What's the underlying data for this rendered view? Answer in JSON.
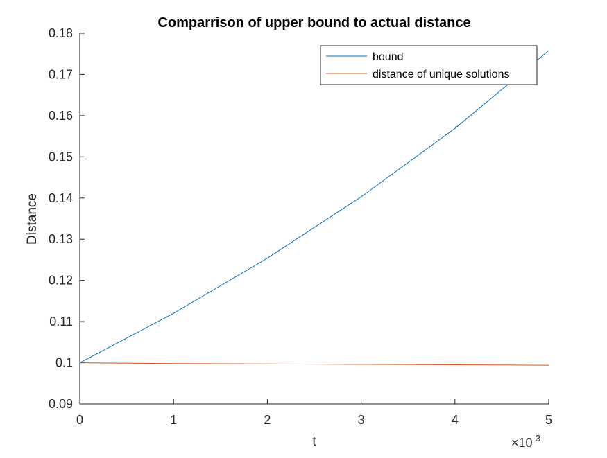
{
  "chart_data": {
    "type": "line",
    "title": "Comparrison of upper bound to actual distance",
    "xlabel": "t",
    "ylabel": "Distance",
    "x_exponent_label": "×10",
    "x_exponent_power": "-3",
    "xlim": [
      0,
      0.005
    ],
    "ylim": [
      0.09,
      0.18
    ],
    "x_ticks": [
      0,
      0.001,
      0.002,
      0.003,
      0.004,
      0.005
    ],
    "x_tick_labels": [
      "0",
      "1",
      "2",
      "3",
      "4",
      "5"
    ],
    "y_ticks": [
      0.09,
      0.1,
      0.11,
      0.12,
      0.13,
      0.14,
      0.15,
      0.16,
      0.17,
      0.18
    ],
    "y_tick_labels": [
      "0.09",
      "0.1",
      "0.11",
      "0.12",
      "0.13",
      "0.14",
      "0.15",
      "0.16",
      "0.17",
      "0.18"
    ],
    "grid": false,
    "legend_position": "top-right",
    "x": [
      0,
      0.001,
      0.002,
      0.003,
      0.004,
      0.005
    ],
    "series": [
      {
        "name": "bound",
        "color": "#0072BD",
        "values": [
          0.1,
          0.112,
          0.1254,
          0.1403,
          0.1569,
          0.1758
        ]
      },
      {
        "name": "distance of unique solutions",
        "color": "#D95319",
        "values": [
          0.1,
          0.0998,
          0.0997,
          0.0996,
          0.0995,
          0.0994
        ]
      }
    ]
  }
}
